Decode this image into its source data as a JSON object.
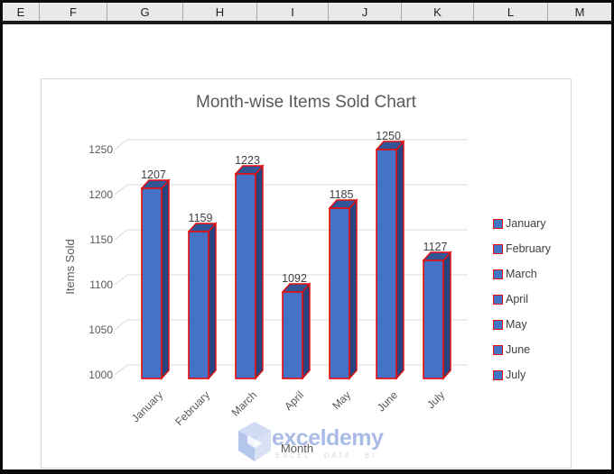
{
  "spreadsheet": {
    "column_headers": [
      "E",
      "F",
      "G",
      "H",
      "I",
      "J",
      "K",
      "L",
      "M"
    ]
  },
  "chart_data": {
    "type": "bar",
    "style": "3d-clustered-column",
    "title": "Month-wise Items Sold Chart",
    "categories": [
      "January",
      "February",
      "March",
      "April",
      "May",
      "June",
      "July"
    ],
    "values": [
      1207,
      1159,
      1223,
      1092,
      1185,
      1250,
      1127
    ],
    "data_labels": [
      1207,
      1159,
      1223,
      1092,
      1185,
      1250,
      1127
    ],
    "xlabel": "Month",
    "ylabel": "Items Sold",
    "ylim": [
      1000,
      1250
    ],
    "ytick_step": 50,
    "yticks": [
      1000,
      1050,
      1100,
      1150,
      1200,
      1250
    ],
    "grid": true,
    "legend": [
      "January",
      "February",
      "March",
      "April",
      "May",
      "June",
      "July"
    ],
    "legend_position": "right"
  },
  "colors": {
    "bar_front": "#4472C4",
    "bar_side": "#27447f",
    "bar_top": "#305697",
    "bar_outline": "#e60c0c",
    "gridline": "#d9d9d9",
    "axis_text": "#595959",
    "value_label_text": "#3f3f3f",
    "title_text": "#595959"
  },
  "watermark": {
    "brand": "exceldemy",
    "tagline": "EXCEL - DATA - BI"
  }
}
